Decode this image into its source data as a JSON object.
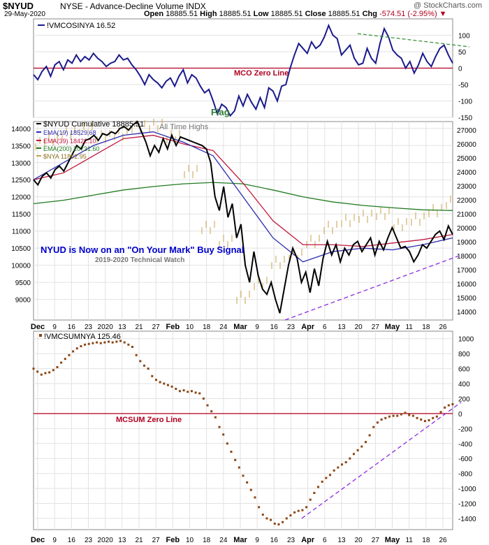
{
  "header": {
    "symbol": "$NYUD",
    "exchange_name": "NYSE - Advance-Decline Volume INDX",
    "source": "@ StockCharts.com",
    "date": "29-May-2020",
    "open_label": "Open",
    "open": "18885.51",
    "high_label": "High",
    "high": "18885.51",
    "low_label": "Low",
    "low": "18885.51",
    "close_label": "Close",
    "close": "18885.51",
    "chg_label": "Chg",
    "chg": "-574.51 (-2.95%)",
    "chg_icon": "down-triangle-icon"
  },
  "colors": {
    "mco": "#1a1a8c",
    "zero_line": "#b00020",
    "nyud": "#000000",
    "ema19": "#2b2bb0",
    "ema39": "#c0163c",
    "ema200": "#1f7a1f",
    "nya": "#c8a24a",
    "trend": "#8a2be2",
    "mcsum": "#8b4513",
    "blue_text": "#0000cc",
    "green_text": "#2e7d32",
    "grid": "#e2e2e2"
  },
  "x_axis": {
    "tick_labels": [
      "Dec",
      "9",
      "16",
      "23",
      "2020",
      "13",
      "21",
      "27",
      "Feb",
      "10",
      "18",
      "24",
      "Mar",
      "9",
      "16",
      "23",
      "Apr",
      "6",
      "13",
      "20",
      "27",
      "May",
      "11",
      "18",
      "26"
    ]
  },
  "chart_data": [
    {
      "type": "line",
      "title": "!VMCOSINYA 16.52",
      "ylim": [
        -150,
        150
      ],
      "y_ticks": [
        "100",
        "50",
        "0",
        "-50",
        "-100",
        "-150"
      ],
      "annotations": {
        "zero_line": "MCO Zero Line",
        "flag": "Flag"
      },
      "series": [
        {
          "name": "!VMCOSINYA",
          "values": [
            -20,
            -35,
            -10,
            5,
            -25,
            10,
            20,
            -5,
            25,
            15,
            40,
            20,
            35,
            25,
            45,
            30,
            20,
            5,
            15,
            20,
            40,
            25,
            30,
            10,
            -5,
            -25,
            -50,
            -20,
            -35,
            -45,
            -60,
            -40,
            -30,
            -55,
            -25,
            -5,
            -45,
            -20,
            -30,
            -55,
            -75,
            -65,
            -100,
            -140,
            -110,
            -120,
            -145,
            -130,
            -85,
            -115,
            -80,
            -105,
            -125,
            -90,
            -120,
            -60,
            -70,
            -100,
            -55,
            -50,
            0,
            40,
            75,
            60,
            45,
            80,
            60,
            70,
            95,
            130,
            100,
            90,
            40,
            55,
            70,
            30,
            10,
            15,
            60,
            30,
            15,
            75,
            120,
            95,
            55,
            40,
            30,
            0,
            20,
            -15,
            10,
            45,
            20,
            5,
            35,
            60,
            70,
            40,
            15
          ]
        },
        {
          "name": "MCO trend line",
          "values": [
            105,
            65
          ]
        }
      ]
    },
    {
      "type": "line",
      "title": "$NYUD Cumulative 18885.51",
      "ylim": [
        8400,
        14200
      ],
      "y_ticks_left": [
        "14000",
        "13500",
        "13000",
        "12500",
        "12000",
        "11500",
        "11000",
        "10500",
        "10000",
        "9500",
        "9000"
      ],
      "y_ticks_right": [
        "27000",
        "26000",
        "25000",
        "24000",
        "23000",
        "22000",
        "21000",
        "20000",
        "19000",
        "18000",
        "17000",
        "16000",
        "15000",
        "14000"
      ],
      "annotations": {
        "all_time_highs": "All Time Highs",
        "headline": "NYUD is Now on an \"On Your Mark\" Buy Signal",
        "subline": "2019-2020 Technical Watch"
      },
      "series": [
        {
          "name": "$NYUD Cumulative 18885.51",
          "values": [
            12500,
            12350,
            12600,
            12700,
            12550,
            12800,
            12900,
            12750,
            13000,
            13250,
            13500,
            13400,
            13650,
            13700,
            13800,
            13650,
            13850,
            13800,
            13900,
            13850,
            14000,
            14050,
            13950,
            14100,
            14200,
            13900,
            13600,
            13200,
            13500,
            13300,
            13700,
            13400,
            13800,
            13500,
            13750,
            13700,
            13650,
            13600,
            13550,
            13500,
            13400,
            13000,
            12000,
            11600,
            12300,
            11400,
            11800,
            10800,
            11200,
            10000,
            9500,
            10400,
            9700,
            9300,
            9150,
            9500,
            9000,
            8600,
            9300,
            10000,
            10500,
            10200,
            9500,
            9800,
            9200,
            9900,
            9400,
            10200,
            10700,
            10300,
            10600,
            10100,
            10500,
            10300,
            10600,
            10700,
            10400,
            10600,
            10800,
            10300,
            10700,
            10450,
            10800,
            11100,
            10800,
            10500,
            10550,
            10400,
            10100,
            10300,
            10600,
            10500,
            10700,
            10900,
            11000,
            10750,
            11150,
            10900
          ]
        },
        {
          "name": "EMA(19) 18529.68",
          "values": [
            12500,
            13000,
            13500,
            13800,
            13900,
            13600,
            13200,
            12000,
            10800,
            10100,
            10400,
            10500,
            10450,
            10600,
            10800
          ]
        },
        {
          "name": "EMA(39) 18422.10",
          "values": [
            12500,
            12700,
            13200,
            13700,
            13800,
            13550,
            13350,
            12400,
            11300,
            10600,
            10600,
            10550,
            10650,
            10750,
            10900
          ]
        },
        {
          "name": "EMA(200) 20731.60",
          "values": [
            11800,
            11900,
            12050,
            12200,
            12300,
            12380,
            12420,
            12380,
            12200,
            12000,
            11850,
            11750,
            11680,
            11620,
            11600
          ]
        },
        {
          "name": "$NYA 11802.95",
          "values": [
            26000,
            26300,
            26800,
            27000,
            26500,
            26700,
            27200,
            27300,
            26500,
            24000,
            20000,
            19000,
            15000,
            16000,
            17500,
            18000,
            19000,
            20000,
            20500,
            20800,
            21000,
            20200,
            20600,
            21200,
            21800
          ]
        },
        {
          "name": "NYUD trend line",
          "values": [
            8400,
            10300
          ]
        }
      ]
    },
    {
      "type": "scatter",
      "title": "!VMCSUMNYA 125.46",
      "ylim": [
        -1550,
        1100
      ],
      "y_ticks": [
        "1000",
        "800",
        "600",
        "400",
        "200",
        "0",
        "-200",
        "-400",
        "-600",
        "-800",
        "-1000",
        "-1200",
        "-1400"
      ],
      "annotations": {
        "zero_line": "MCSUM Zero Line"
      },
      "series": [
        {
          "name": "!VMCSUMNYA",
          "values": [
            600,
            560,
            520,
            540,
            550,
            580,
            620,
            680,
            730,
            780,
            830,
            870,
            900,
            920,
            930,
            940,
            950,
            940,
            950,
            960,
            950,
            960,
            970,
            950,
            920,
            890,
            780,
            700,
            640,
            600,
            500,
            450,
            420,
            400,
            380,
            360,
            330,
            300,
            310,
            290,
            300,
            280,
            270,
            200,
            110,
            30,
            -50,
            -180,
            -280,
            -400,
            -510,
            -620,
            -720,
            -830,
            -920,
            -1020,
            -1120,
            -1250,
            -1350,
            -1400,
            -1420,
            -1470,
            -1480,
            -1450,
            -1400,
            -1360,
            -1320,
            -1300,
            -1290,
            -1250,
            -1150,
            -1060,
            -980,
            -910,
            -860,
            -820,
            -760,
            -720,
            -680,
            -650,
            -600,
            -540,
            -490,
            -440,
            -380,
            -290,
            -180,
            -120,
            -80,
            -60,
            -40,
            -30,
            -30,
            -10,
            10,
            -20,
            -30,
            -60,
            -80,
            -100,
            -90,
            -60,
            -40,
            20,
            80,
            110,
            125
          ]
        },
        {
          "name": "MCSUM trend line",
          "values": [
            -1400,
            150
          ]
        }
      ]
    }
  ]
}
